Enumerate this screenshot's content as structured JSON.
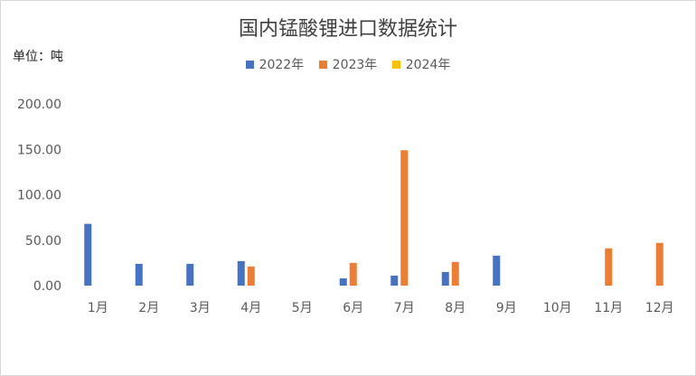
{
  "chart_data": {
    "type": "bar",
    "title": "国内锰酸锂进口数据统计",
    "unit_label": "单位：吨",
    "categories": [
      "1月",
      "2月",
      "3月",
      "4月",
      "5月",
      "6月",
      "7月",
      "8月",
      "9月",
      "10月",
      "11月",
      "12月"
    ],
    "series": [
      {
        "name": "2022年",
        "color": "#4472c4",
        "values": [
          68,
          24,
          24,
          27,
          null,
          8,
          11,
          15,
          33,
          null,
          null,
          null
        ]
      },
      {
        "name": "2023年",
        "color": "#ed7d31",
        "values": [
          null,
          null,
          null,
          21,
          null,
          25,
          149,
          26,
          null,
          null,
          41,
          47
        ]
      },
      {
        "name": "2024年",
        "color": "#ffc000",
        "values": [
          null,
          null,
          null,
          null,
          null,
          null,
          null,
          null,
          null,
          null,
          null,
          null
        ]
      }
    ],
    "yticks": [
      "0.00",
      "50.00",
      "100.00",
      "150.00",
      "200.00"
    ],
    "ylim": [
      0,
      200
    ],
    "legend_position": "top",
    "grid": false
  }
}
